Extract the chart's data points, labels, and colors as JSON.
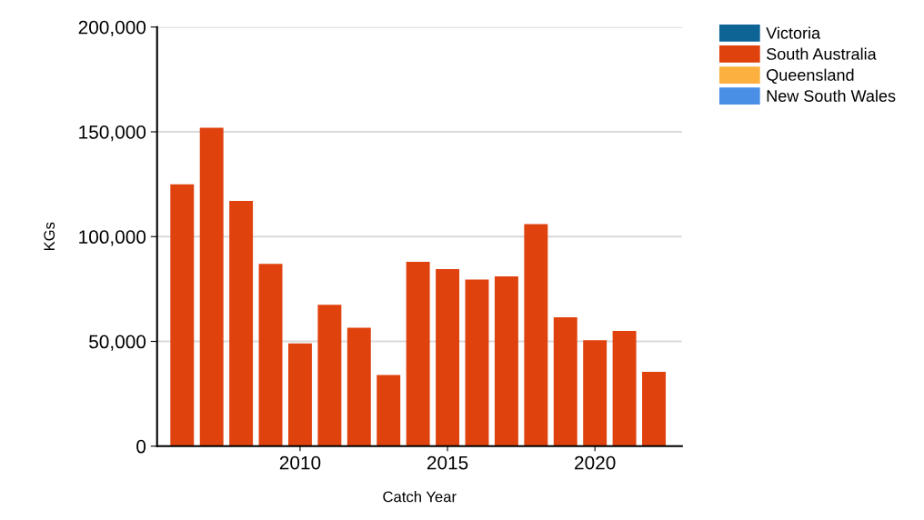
{
  "chart_data": {
    "type": "bar",
    "xlabel": "Catch Year",
    "ylabel": "KGs",
    "x": [
      2006,
      2007,
      2008,
      2009,
      2010,
      2011,
      2012,
      2013,
      2014,
      2015,
      2016,
      2017,
      2018,
      2019,
      2020,
      2021,
      2022
    ],
    "series": [
      {
        "name": "Victoria",
        "color": "#0f6496",
        "values": [
          null,
          null,
          null,
          null,
          null,
          null,
          null,
          null,
          null,
          null,
          null,
          null,
          null,
          null,
          null,
          null,
          null
        ]
      },
      {
        "name": "South Australia",
        "color": "#e0420e",
        "values": [
          125000,
          152000,
          117000,
          87000,
          49000,
          67500,
          56500,
          34000,
          88000,
          84500,
          79500,
          81000,
          106000,
          61500,
          50500,
          55000,
          35500
        ]
      },
      {
        "name": "Queensland",
        "color": "#fbb040",
        "values": [
          null,
          null,
          null,
          null,
          null,
          null,
          null,
          null,
          null,
          null,
          null,
          null,
          null,
          null,
          null,
          null,
          null
        ]
      },
      {
        "name": "New South Wales",
        "color": "#4a8fe6",
        "values": [
          null,
          null,
          null,
          null,
          null,
          null,
          null,
          null,
          null,
          null,
          null,
          null,
          null,
          null,
          null,
          null,
          null
        ]
      }
    ],
    "xlim": [
      2005.15,
      2022.95
    ],
    "xticks": [
      2010,
      2015,
      2020
    ],
    "ylim": [
      0,
      200000
    ],
    "yticks": [
      {
        "value": 0,
        "label": "0"
      },
      {
        "value": 50000,
        "label": "50,000"
      },
      {
        "value": 100000,
        "label": "100,000"
      },
      {
        "value": 150000,
        "label": "150,000"
      },
      {
        "value": 200000,
        "label": "200,000"
      }
    ],
    "grid": "y",
    "legend": "top right"
  }
}
